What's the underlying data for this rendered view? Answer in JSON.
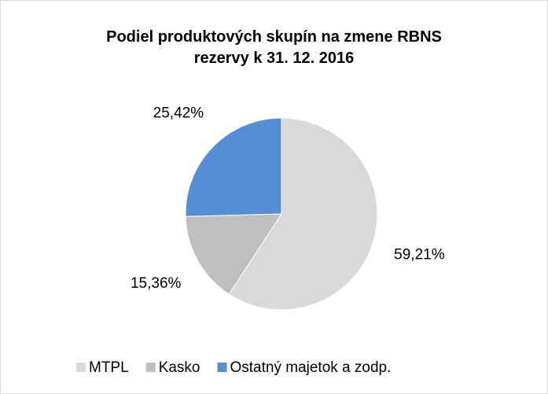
{
  "chart_data": {
    "type": "pie",
    "title": "Podiel produktových skupín na zmene RBNS rezervy k 31. 12. 2016",
    "categories": [
      "MTPL",
      "Kasko",
      "Ostatný majetok a zodp."
    ],
    "values": [
      59.21,
      15.36,
      25.42
    ],
    "value_labels": [
      "59,21%",
      "15,36%",
      "25,42%"
    ],
    "colors": [
      "#d9d9d9",
      "#bfbfbf",
      "#558ed5"
    ],
    "legend": "bottom"
  }
}
